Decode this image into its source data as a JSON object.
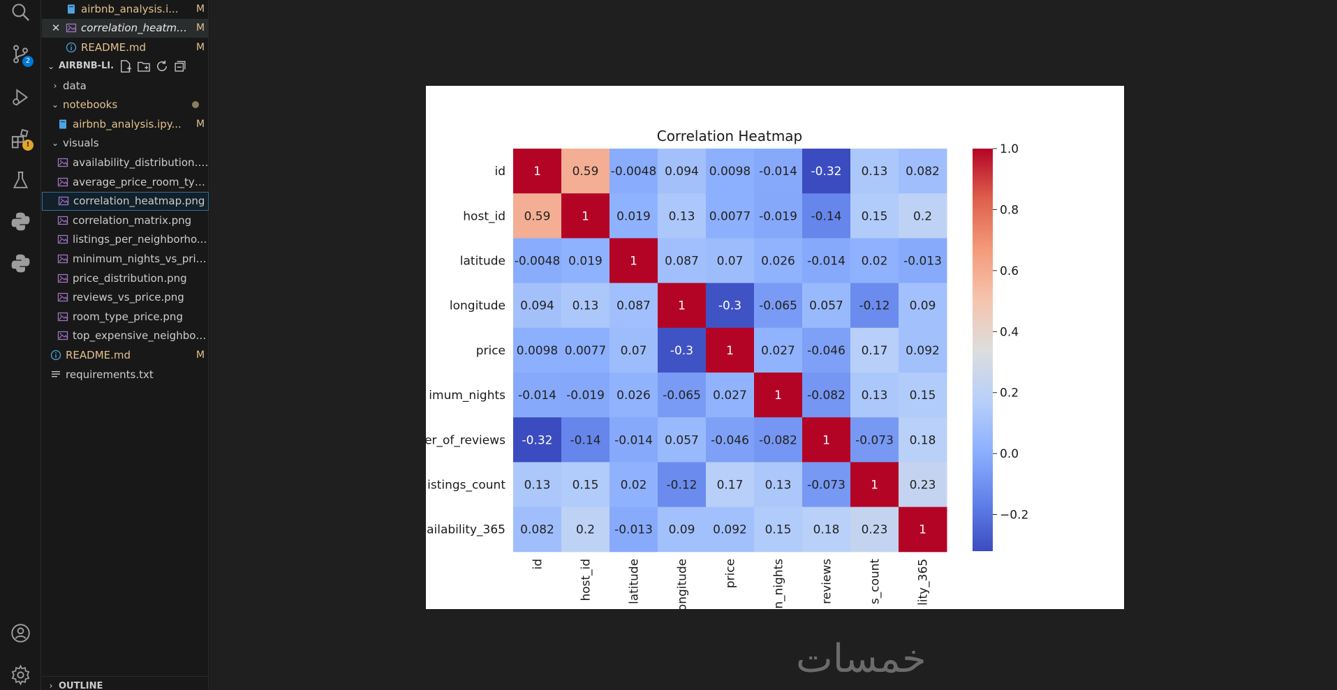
{
  "sidebar": {
    "open_editors": [
      {
        "label": "airbnb_analysis.i...",
        "badge": "M",
        "icon": "notebook-icon"
      },
      {
        "label": "correlation_heatmap.p...",
        "badge": "M",
        "icon": "image-icon",
        "active": true
      },
      {
        "label": "README.md",
        "badge": "M",
        "icon": "info-icon"
      }
    ],
    "workspace_title": "AIRBNB-LI...",
    "tree": [
      {
        "label": "data",
        "type": "folder",
        "indent": 0,
        "expanded": false
      },
      {
        "label": "notebooks",
        "type": "folder",
        "indent": 0,
        "expanded": true,
        "modified": true
      },
      {
        "label": "airbnb_analysis.ipy...",
        "type": "notebook",
        "indent": 1,
        "badge": "M"
      },
      {
        "label": "visuals",
        "type": "folder",
        "indent": 0,
        "expanded": true
      },
      {
        "label": "availability_distribution.p...",
        "type": "image",
        "indent": 1
      },
      {
        "label": "average_price_room_typ...",
        "type": "image",
        "indent": 1
      },
      {
        "label": "correlation_heatmap.png",
        "type": "image",
        "indent": 1,
        "selected": true
      },
      {
        "label": "correlation_matrix.png",
        "type": "image",
        "indent": 1
      },
      {
        "label": "listings_per_neighborho...",
        "type": "image",
        "indent": 1
      },
      {
        "label": "minimum_nights_vs_pric...",
        "type": "image",
        "indent": 1
      },
      {
        "label": "price_distribution.png",
        "type": "image",
        "indent": 1
      },
      {
        "label": "reviews_vs_price.png",
        "type": "image",
        "indent": 1
      },
      {
        "label": "room_type_price.png",
        "type": "image",
        "indent": 1
      },
      {
        "label": "top_expensive_neighbou...",
        "type": "image",
        "indent": 1
      },
      {
        "label": "README.md",
        "type": "info",
        "indent": 0,
        "badge": "M"
      },
      {
        "label": "requirements.txt",
        "type": "text",
        "indent": 0
      }
    ],
    "outline_label": "OUTLINE"
  },
  "activity_bar": {
    "icons": [
      "search-icon",
      "source-control-icon",
      "run-debug-icon",
      "extensions-icon",
      "testing-icon",
      "python-icon",
      "python-env-icon",
      "account-icon",
      "settings-gear-icon"
    ],
    "source_control_badge": "2",
    "extensions_badge": "!"
  },
  "watermark": "خمسات",
  "chart_data": {
    "type": "heatmap",
    "title": "Correlation Heatmap",
    "row_labels": [
      "id",
      "host_id",
      "latitude",
      "longitude",
      "price",
      "imum_nights",
      "er_of_reviews",
      "istings_count",
      "ailability_365"
    ],
    "col_labels": [
      "id",
      "host_id",
      "latitude",
      "ongitude",
      "price",
      "n_nights",
      "reviews",
      "s_count",
      "lity_365"
    ],
    "values": [
      [
        1,
        0.59,
        -0.0048,
        0.094,
        0.0098,
        -0.014,
        -0.32,
        0.13,
        0.082
      ],
      [
        0.59,
        1,
        0.019,
        0.13,
        0.0077,
        -0.019,
        -0.14,
        0.15,
        0.2
      ],
      [
        -0.0048,
        0.019,
        1,
        0.087,
        0.07,
        0.026,
        -0.014,
        0.02,
        -0.013
      ],
      [
        0.094,
        0.13,
        0.087,
        1,
        -0.3,
        -0.065,
        0.057,
        -0.12,
        0.09
      ],
      [
        0.0098,
        0.0077,
        0.07,
        -0.3,
        1,
        0.027,
        -0.046,
        0.17,
        0.092
      ],
      [
        -0.014,
        -0.019,
        0.026,
        -0.065,
        0.027,
        1,
        -0.082,
        0.13,
        0.15
      ],
      [
        -0.32,
        -0.14,
        -0.014,
        0.057,
        -0.046,
        -0.082,
        1,
        -0.073,
        0.18
      ],
      [
        0.13,
        0.15,
        0.02,
        -0.12,
        0.17,
        0.13,
        -0.073,
        1,
        0.23
      ],
      [
        0.082,
        0.2,
        -0.013,
        0.09,
        0.092,
        0.15,
        0.18,
        0.23,
        1
      ]
    ],
    "colorbar_ticks": [
      "1.0",
      "0.8",
      "0.6",
      "0.4",
      "0.2",
      "0.0",
      "−0.2"
    ],
    "colorbar_tick_values": [
      1.0,
      0.8,
      0.6,
      0.4,
      0.2,
      0.0,
      -0.2
    ],
    "vmin": -0.32,
    "vmax": 1.0,
    "colormap": "coolwarm"
  }
}
